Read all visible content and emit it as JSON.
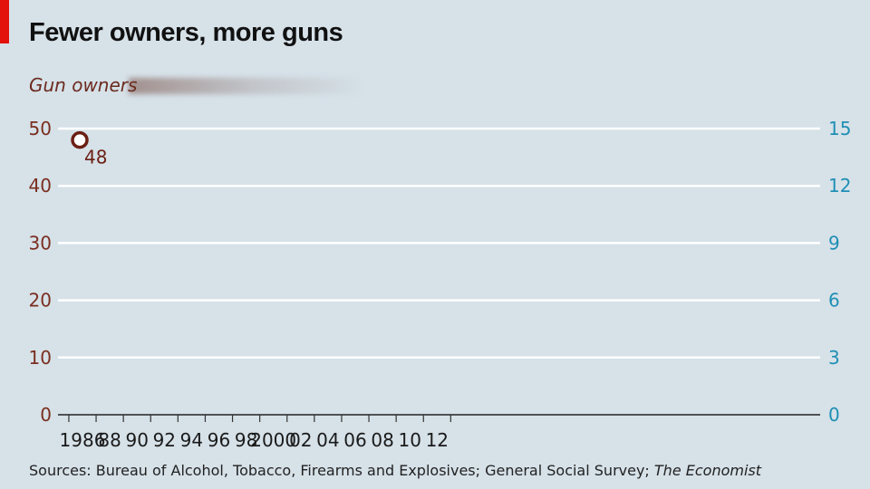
{
  "title": "Fewer owners, more guns",
  "subtitle": "Gun owners",
  "source_text": "Sources: Bureau of Alcohol, Tobacco, Firearms and Explosives; General Social Survey; ",
  "source_publication": "The Economist",
  "colors": {
    "background": "#d6e1e8",
    "accent_red": "#e3120b",
    "left_axis": "#7a2e1f",
    "right_axis": "#1f8fb5",
    "grid": "#ffffff",
    "marker": "#6b1f14"
  },
  "chart_data": {
    "type": "scatter",
    "title": "Fewer owners, more guns",
    "subtitle": "Gun owners",
    "x_range": [
      1985,
      2013
    ],
    "x_ticks": [
      {
        "year": 1986,
        "label": "1986"
      },
      {
        "year": 1988,
        "label": "88"
      },
      {
        "year": 1990,
        "label": "90"
      },
      {
        "year": 1992,
        "label": "92"
      },
      {
        "year": 1994,
        "label": "94"
      },
      {
        "year": 1996,
        "label": "96"
      },
      {
        "year": 1998,
        "label": "98"
      },
      {
        "year": 2000,
        "label": "2000"
      },
      {
        "year": 2002,
        "label": "02"
      },
      {
        "year": 2004,
        "label": "04"
      },
      {
        "year": 2006,
        "label": "06"
      },
      {
        "year": 2008,
        "label": "08"
      },
      {
        "year": 2010,
        "label": "10"
      },
      {
        "year": 2012,
        "label": "12"
      }
    ],
    "y_left": {
      "range": [
        0,
        50
      ],
      "ticks": [
        "0",
        "10",
        "20",
        "30",
        "40",
        "50"
      ]
    },
    "y_right": {
      "range": [
        0,
        15
      ],
      "ticks": [
        "0",
        "3",
        "6",
        "9",
        "12",
        "15"
      ]
    },
    "grid": true,
    "series": [
      {
        "axis": "left",
        "points": [
          {
            "x": 1986,
            "y": 48,
            "label": "48"
          }
        ]
      }
    ]
  }
}
